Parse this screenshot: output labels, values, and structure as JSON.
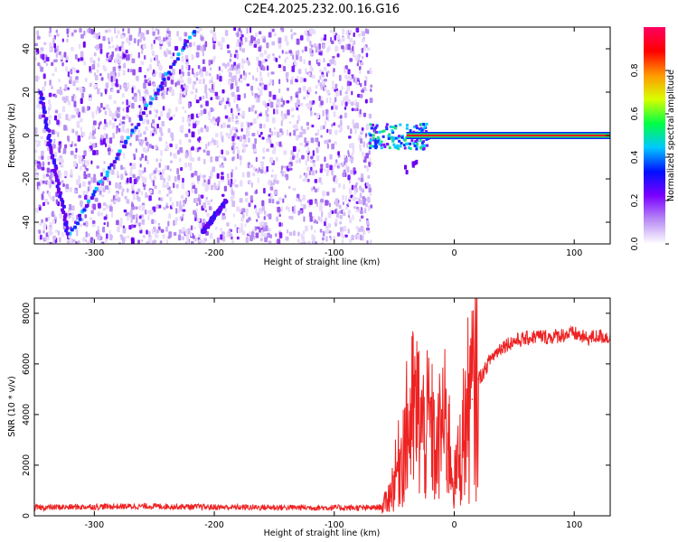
{
  "title": "C2E4.2025.232.00.16.G16",
  "chart_data": [
    {
      "type": "heatmap",
      "name": "spectrogram",
      "xlabel": "Height of straight line (km)",
      "ylabel": "Frequency (Hz)",
      "xlim": [
        -350,
        130
      ],
      "ylim": [
        -50,
        50
      ],
      "x_ticks": [
        -300,
        -200,
        -100,
        0,
        100
      ],
      "x_tick_labels": [
        "-300",
        "-200",
        "-100",
        "0",
        "100"
      ],
      "y_ticks": [
        -40,
        -20,
        0,
        20,
        40
      ],
      "y_tick_labels": [
        "-40",
        "-20",
        "0",
        "20",
        "40"
      ],
      "noise_region_x": [
        -350,
        -70
      ],
      "features": [
        {
          "name": "rising diagonal trace",
          "x": [
            -320,
            -215
          ],
          "y": [
            -45,
            50
          ]
        },
        {
          "name": "left falling trace",
          "x": [
            -345,
            -322
          ],
          "y": [
            20,
            -45
          ]
        },
        {
          "name": "lower branch trace",
          "x": [
            -210,
            -190
          ],
          "y": [
            -45,
            -30
          ]
        },
        {
          "name": "direct signal line",
          "x": [
            -70,
            130
          ],
          "y": [
            0,
            0
          ]
        }
      ],
      "colorbar": {
        "label": "Normalized spectral amplitude",
        "range": [
          0,
          1
        ],
        "ticks": [
          0.0,
          0.2,
          0.4,
          0.6,
          0.8
        ],
        "tick_labels": [
          "0.0",
          "0.2",
          "0.4",
          "0.6",
          "0.8"
        ],
        "colors": [
          "#ffffff",
          "#b98cf5",
          "#7b00ff",
          "#0010ff",
          "#00c8ff",
          "#00ff44",
          "#d8ff00",
          "#ff9900",
          "#ff0000",
          "#ff0060"
        ]
      }
    },
    {
      "type": "line",
      "name": "snr",
      "xlabel": "Height of straight line (km)",
      "ylabel": "SNR (10 * v/v)",
      "xlim": [
        -350,
        130
      ],
      "ylim": [
        0,
        8600
      ],
      "x_ticks": [
        -300,
        -200,
        -100,
        0,
        100
      ],
      "x_tick_labels": [
        "-300",
        "-200",
        "-100",
        "0",
        "100"
      ],
      "y_ticks": [
        0,
        2000,
        4000,
        6000,
        8000
      ],
      "y_tick_labels": [
        "0",
        "2000",
        "4000",
        "6000",
        "8000"
      ],
      "color": "#ee2222",
      "series": [
        {
          "name": "SNR",
          "x": [
            -350,
            -300,
            -250,
            -200,
            -150,
            -100,
            -70,
            -60,
            -55,
            -50,
            -45,
            -40,
            -35,
            -30,
            -25,
            -20,
            -15,
            -10,
            -5,
            0,
            5,
            10,
            15,
            20,
            25,
            30,
            40,
            50,
            60,
            70,
            80,
            90,
            100,
            110,
            120,
            130
          ],
          "y": [
            320,
            360,
            380,
            340,
            330,
            320,
            310,
            350,
            700,
            1400,
            2300,
            3200,
            4000,
            4000,
            3200,
            3700,
            2200,
            3800,
            3100,
            1300,
            2400,
            4000,
            4600,
            5400,
            5700,
            6200,
            6700,
            6900,
            7000,
            7100,
            7050,
            7150,
            7200,
            7000,
            7100,
            7050
          ]
        }
      ]
    }
  ]
}
